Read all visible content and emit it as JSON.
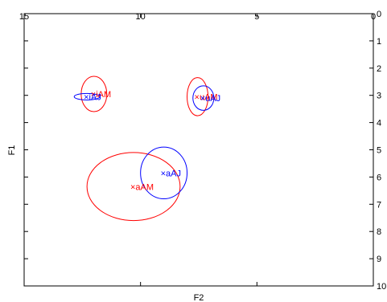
{
  "chart_data": {
    "type": "scatter",
    "xlabel": "F2",
    "ylabel": "F1",
    "xlim": [
      15,
      0
    ],
    "ylim": [
      0,
      10
    ],
    "x_reversed": true,
    "y_reversed": true,
    "xticks": [
      15,
      10,
      5,
      0
    ],
    "yticks": [
      0,
      1,
      2,
      3,
      4,
      5,
      6,
      7,
      8,
      9,
      10
    ],
    "x_tick_labels": [
      "15",
      "10",
      "5",
      "0"
    ],
    "y_tick_labels": [
      "0",
      "1",
      "2",
      "3",
      "4",
      "5",
      "6",
      "7",
      "8",
      "9",
      "10"
    ],
    "x_ticks_at_top": true,
    "y_ticks_at_right": true,
    "grid": false,
    "series": [
      {
        "color": "#ff0000",
        "points": [
          {
            "label": "iAM",
            "x": 12.0,
            "y": 2.95,
            "rx": 0.55,
            "ry": 0.65
          },
          {
            "label": "uAM",
            "x": 7.55,
            "y": 3.05,
            "rx": 0.45,
            "ry": 0.7
          },
          {
            "label": "aAM",
            "x": 10.3,
            "y": 6.35,
            "rx": 2.0,
            "ry": 1.25
          }
        ]
      },
      {
        "color": "#0000ff",
        "points": [
          {
            "label": "iAJ",
            "x": 12.3,
            "y": 3.05,
            "rx": 0.55,
            "ry": 0.12
          },
          {
            "label": "uAJ",
            "x": 7.3,
            "y": 3.1,
            "rx": 0.45,
            "ry": 0.45
          },
          {
            "label": "aAJ",
            "x": 9.0,
            "y": 5.85,
            "rx": 1.0,
            "ry": 0.95
          }
        ]
      }
    ]
  }
}
